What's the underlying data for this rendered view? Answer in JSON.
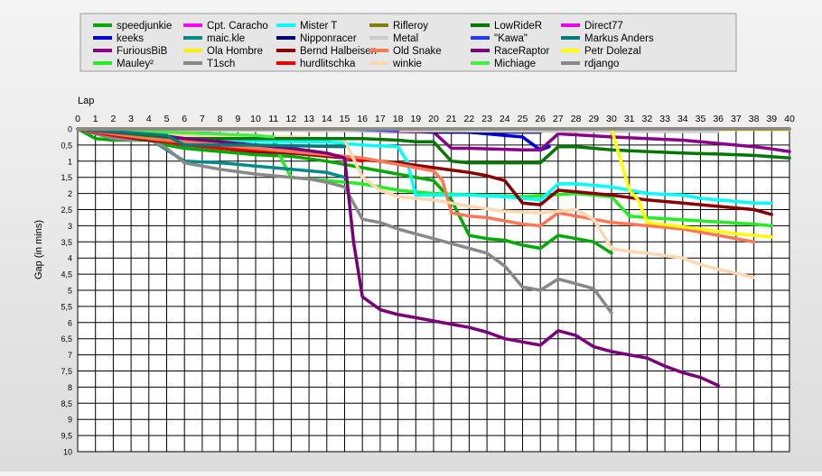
{
  "chart_data": {
    "type": "line",
    "title": "",
    "xlabel": "Lap",
    "ylabel": "Gap (in mins)",
    "x_ticks": [
      0,
      1,
      2,
      3,
      4,
      5,
      6,
      7,
      8,
      9,
      10,
      11,
      12,
      13,
      14,
      15,
      16,
      17,
      18,
      19,
      20,
      21,
      22,
      23,
      24,
      25,
      26,
      27,
      28,
      29,
      30,
      31,
      32,
      33,
      34,
      35,
      36,
      37,
      38,
      39,
      40
    ],
    "y_ticks": [
      "0",
      "0,5",
      "1",
      "1,5",
      "2",
      "2,5",
      "3",
      "3,5",
      "4",
      "4,5",
      "5",
      "5,5",
      "6",
      "6,5",
      "7",
      "7,5",
      "8",
      "8,5",
      "9",
      "9,5",
      "10"
    ],
    "xlim": [
      0,
      40
    ],
    "ylim": [
      0,
      10
    ],
    "y_inverted": true,
    "grid": true,
    "legend_position": "top",
    "series": [
      {
        "name": "speedjunkie",
        "color": "#00aa00",
        "x": [
          0,
          1,
          2,
          3,
          4,
          5,
          6,
          8,
          10,
          12,
          14,
          15,
          16,
          18,
          20,
          21,
          22,
          23,
          24,
          25,
          26,
          27,
          28,
          29,
          30
        ],
        "y": [
          0,
          0.3,
          0.35,
          0.35,
          0.35,
          0.5,
          0.6,
          0.7,
          0.8,
          0.85,
          1.0,
          1.1,
          1.2,
          1.4,
          1.6,
          2.2,
          3.3,
          3.4,
          3.45,
          3.6,
          3.7,
          3.3,
          3.4,
          3.5,
          3.85
        ]
      },
      {
        "name": "keeks",
        "color": "#0000dd",
        "x": [
          0,
          5,
          10,
          15,
          20,
          22,
          24,
          25,
          26,
          26.5
        ],
        "y": [
          0,
          0.05,
          0.05,
          0.05,
          0.05,
          0.1,
          0.2,
          0.25,
          0.65,
          0.55
        ]
      },
      {
        "name": "FuriousBiB",
        "color": "#8b008b",
        "x": [
          0,
          2,
          4,
          10,
          15,
          20,
          21,
          22,
          25,
          26,
          27,
          30,
          32,
          34,
          36,
          38,
          39,
          40
        ],
        "y": [
          0,
          0.02,
          0.03,
          0.03,
          0.05,
          0.1,
          0.6,
          0.6,
          0.65,
          0.65,
          0.15,
          0.25,
          0.3,
          0.35,
          0.45,
          0.55,
          0.62,
          0.7
        ]
      },
      {
        "name": "Mauley²",
        "color": "#22ee22",
        "x": [
          0,
          2,
          4,
          6,
          8,
          10,
          11,
          11.5,
          12,
          14,
          16,
          18,
          20,
          25,
          28,
          30,
          30.5,
          31,
          32,
          35,
          38,
          39
        ],
        "y": [
          0,
          0.1,
          0.15,
          0.2,
          0.22,
          0.25,
          0.3,
          1.0,
          1.5,
          1.6,
          1.7,
          1.9,
          2.0,
          2.1,
          2.0,
          2.1,
          2.4,
          2.7,
          2.75,
          2.85,
          2.95,
          3.0
        ]
      },
      {
        "name": "Cpt. Caracho",
        "color": "#ff00ff",
        "x": [
          0,
          5,
          10,
          15,
          20,
          25,
          30,
          35,
          40
        ],
        "y": [
          0,
          0,
          0,
          0,
          0,
          0,
          0,
          0,
          0
        ]
      },
      {
        "name": "maic.kle",
        "color": "#008b8b",
        "x": [
          0,
          3,
          4,
          6,
          8,
          10,
          12,
          14,
          15
        ],
        "y": [
          0,
          0.3,
          0.3,
          1.0,
          1.05,
          1.15,
          1.25,
          1.35,
          1.5
        ]
      },
      {
        "name": "Ola Hombre",
        "color": "#ffee00",
        "x": [
          0,
          5,
          10,
          15,
          20,
          25,
          30,
          35,
          40
        ],
        "y": [
          0,
          0.02,
          0.02,
          0.02,
          0.02,
          0.02,
          0.02,
          0.02,
          0.02
        ]
      },
      {
        "name": "T1sch",
        "color": "#888888",
        "x": [
          0,
          2,
          3,
          4,
          5,
          6,
          8,
          10,
          12,
          13,
          14,
          15,
          16,
          17,
          18,
          19,
          20,
          22,
          23,
          24,
          25,
          26,
          27,
          28,
          29,
          30
        ],
        "y": [
          0,
          0.3,
          0.35,
          0.3,
          0.6,
          1.05,
          1.25,
          1.4,
          1.5,
          1.55,
          1.65,
          1.8,
          2.8,
          2.9,
          3.1,
          3.25,
          3.4,
          3.7,
          3.85,
          4.25,
          4.9,
          5.0,
          4.65,
          4.8,
          4.95,
          5.7
        ]
      },
      {
        "name": "Mister T",
        "color": "#00ffff",
        "x": [
          0,
          2,
          4,
          6,
          8,
          10,
          12,
          14,
          16,
          18,
          18.5,
          19,
          20,
          22,
          24,
          25,
          26,
          27,
          28,
          30,
          32,
          34,
          35,
          36,
          38,
          39
        ],
        "y": [
          0,
          0.1,
          0.2,
          0.3,
          0.35,
          0.38,
          0.4,
          0.4,
          0.5,
          0.55,
          1.0,
          2.05,
          2.05,
          2.05,
          2.1,
          2.15,
          2.2,
          1.7,
          1.7,
          1.8,
          2.0,
          2.05,
          2.15,
          2.2,
          2.3,
          2.3
        ]
      },
      {
        "name": "Nipponracer",
        "color": "#00006e",
        "x": [
          0,
          5,
          10,
          15,
          19,
          20,
          22,
          24,
          26
        ],
        "y": [
          0,
          0.02,
          0.05,
          0.05,
          0.05,
          0.1,
          0.1,
          0.1,
          0.1
        ]
      },
      {
        "name": "Bernd Halbeisen",
        "color": "#880000",
        "x": [
          0,
          2,
          4,
          6,
          8,
          10,
          12,
          14,
          16,
          18,
          20,
          22,
          23,
          24,
          25,
          26,
          27,
          28,
          29,
          30,
          32,
          34,
          36,
          38,
          39
        ],
        "y": [
          0,
          0.2,
          0.35,
          0.45,
          0.6,
          0.7,
          0.75,
          0.85,
          0.95,
          1.05,
          1.2,
          1.35,
          1.45,
          1.6,
          2.3,
          2.35,
          1.9,
          1.95,
          2.0,
          2.05,
          2.2,
          2.3,
          2.4,
          2.5,
          2.65
        ]
      },
      {
        "name": "hurdlitschka",
        "color": "#ee0000",
        "x": [
          0,
          2,
          4,
          5,
          6,
          8,
          10,
          12,
          14,
          15,
          16
        ],
        "y": [
          0,
          0.2,
          0.3,
          0.4,
          0.5,
          0.6,
          0.65,
          0.7,
          0.8,
          0.9,
          1.0
        ]
      },
      {
        "name": "Rifleroy",
        "color": "#808000",
        "x": [
          0,
          5,
          10,
          15,
          20,
          25,
          30,
          35,
          40
        ],
        "y": [
          0,
          0,
          0,
          0,
          0,
          0,
          0,
          0,
          0
        ]
      },
      {
        "name": "Metal",
        "color": "#cccccc",
        "x": [
          0,
          3,
          6,
          9,
          12,
          15,
          18,
          21,
          24,
          27,
          30,
          33,
          36
        ],
        "y": [
          0,
          0.03,
          0.04,
          0.05,
          0.05,
          0.06,
          0.06,
          0.06,
          0.07,
          0.07,
          0.07,
          0.08,
          0.08
        ]
      },
      {
        "name": "Old Snake",
        "color": "#ff7755",
        "x": [
          0,
          2,
          4,
          6,
          8,
          10,
          12,
          14,
          15,
          16,
          17,
          18,
          19,
          20,
          20.5,
          21,
          22,
          23,
          24,
          25,
          26,
          27,
          28,
          29,
          30,
          32,
          34,
          36,
          38
        ],
        "y": [
          0,
          0.15,
          0.3,
          0.4,
          0.5,
          0.6,
          0.7,
          0.8,
          0.85,
          0.9,
          1.0,
          1.1,
          1.2,
          1.3,
          1.6,
          2.6,
          2.7,
          2.75,
          2.85,
          2.95,
          3.0,
          2.6,
          2.7,
          2.8,
          2.9,
          3.0,
          3.1,
          3.3,
          3.5
        ]
      },
      {
        "name": "winkie",
        "color": "#ffd8b0",
        "x": [
          0,
          2,
          4,
          6,
          8,
          10,
          12,
          14,
          15,
          16,
          17,
          18,
          20,
          21,
          22,
          24,
          26,
          27,
          28,
          29,
          30,
          31,
          32,
          34,
          35,
          36,
          38
        ],
        "y": [
          0,
          0.1,
          0.15,
          0.2,
          0.2,
          0.25,
          0.25,
          0.3,
          0.35,
          1.5,
          1.9,
          2.1,
          2.2,
          2.3,
          2.4,
          2.55,
          2.6,
          2.55,
          2.5,
          2.8,
          3.7,
          3.8,
          3.85,
          4.0,
          4.2,
          4.35,
          4.6
        ]
      },
      {
        "name": "LowRideR",
        "color": "#007700",
        "x": [
          0,
          2,
          4,
          6,
          8,
          10,
          12,
          14,
          16,
          18,
          19,
          20,
          21,
          22,
          24,
          26,
          27,
          28,
          30,
          32,
          34,
          36,
          38,
          40
        ],
        "y": [
          0,
          0.1,
          0.2,
          0.3,
          0.3,
          0.3,
          0.3,
          0.3,
          0.3,
          0.35,
          0.4,
          0.4,
          1.0,
          1.05,
          1.05,
          1.05,
          0.55,
          0.55,
          0.65,
          0.7,
          0.75,
          0.78,
          0.82,
          0.9
        ]
      },
      {
        "name": "\"Kawa\"",
        "color": "#1e3cff",
        "x": [
          0,
          5,
          10,
          15,
          18
        ],
        "y": [
          0,
          0,
          0,
          0,
          0.05
        ]
      },
      {
        "name": "RaceRaptor",
        "color": "#7a007a",
        "x": [
          0,
          2,
          4,
          6,
          8,
          10,
          12,
          14,
          15,
          15.5,
          16,
          17,
          18,
          19,
          20,
          22,
          23,
          24,
          25,
          26,
          27,
          28,
          29,
          30,
          31,
          32,
          33,
          34,
          35,
          36
        ],
        "y": [
          0,
          0.1,
          0.15,
          0.3,
          0.4,
          0.5,
          0.6,
          0.75,
          0.9,
          3.5,
          5.2,
          5.6,
          5.75,
          5.85,
          5.95,
          6.15,
          6.3,
          6.5,
          6.6,
          6.7,
          6.25,
          6.4,
          6.75,
          6.9,
          7.0,
          7.1,
          7.35,
          7.55,
          7.7,
          7.95
        ]
      },
      {
        "name": "Michiage",
        "color": "#44ee44",
        "x": [
          0,
          5,
          10,
          11
        ],
        "y": [
          0,
          0.1,
          0.2,
          0.25
        ]
      },
      {
        "name": "Direct77",
        "color": "#ee00ee",
        "x": [
          0,
          5,
          10,
          15
        ],
        "y": [
          0,
          0,
          0,
          0
        ]
      },
      {
        "name": "Markus Anders",
        "color": "#007b7b",
        "x": [
          0,
          5,
          6,
          10,
          15
        ],
        "y": [
          0,
          0.2,
          0.5,
          0.5,
          0.55
        ]
      },
      {
        "name": "Petr Dolezal",
        "color": "#ffff00",
        "x": [
          0,
          5,
          10,
          15,
          20,
          25,
          30,
          31,
          31.5,
          32,
          35,
          37,
          39
        ],
        "y": [
          0,
          0,
          0,
          0,
          0,
          0,
          0,
          1.9,
          2.2,
          2.9,
          3.1,
          3.25,
          3.35
        ]
      },
      {
        "name": "rdjango",
        "color": "#888888",
        "x": [
          0,
          10,
          20,
          30,
          40
        ],
        "y": [
          0,
          0,
          0,
          0,
          0
        ]
      }
    ]
  }
}
